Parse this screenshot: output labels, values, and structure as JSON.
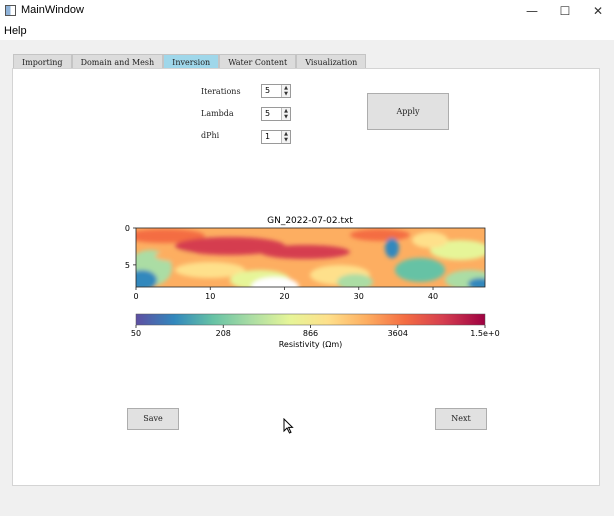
{
  "window": {
    "title": "MainWindow",
    "minimize_glyph": "—",
    "maximize_glyph": "☐",
    "close_glyph": "✕"
  },
  "menu": {
    "help": "Help"
  },
  "tabs": [
    {
      "label": "Importing"
    },
    {
      "label": "Domain and Mesh"
    },
    {
      "label": "Inversion",
      "active": true
    },
    {
      "label": "Water Content"
    },
    {
      "label": "Visualization"
    }
  ],
  "params": {
    "iterations": {
      "label": "Iterations",
      "value": "5"
    },
    "lambda": {
      "label": "Lambda",
      "value": "5"
    },
    "dphi": {
      "label": "dPhi",
      "value": "1"
    }
  },
  "buttons": {
    "apply": "Apply",
    "save": "Save",
    "next": "Next"
  },
  "chart_data": {
    "type": "heatmap",
    "title": "GN_2022-07-02.txt",
    "x_ticks": [
      "0",
      "10",
      "20",
      "30",
      "40"
    ],
    "x_range": [
      0,
      47
    ],
    "y_ticks": [
      "0",
      "5"
    ],
    "y_range": [
      0,
      8
    ],
    "colorbar": {
      "label": "Resistivity (Ωm)",
      "ticks": [
        "50",
        "208",
        "866",
        "3604",
        "1.5e+0"
      ],
      "colormap": [
        "#5e4fa2",
        "#3288bd",
        "#66c2a5",
        "#abdda4",
        "#e6f598",
        "#fee08b",
        "#fdae61",
        "#f46d43",
        "#d53e4f",
        "#9e0142"
      ]
    }
  },
  "colors": {
    "active_tab": "#9fd7ea",
    "button_bg": "#e1e1e1"
  }
}
